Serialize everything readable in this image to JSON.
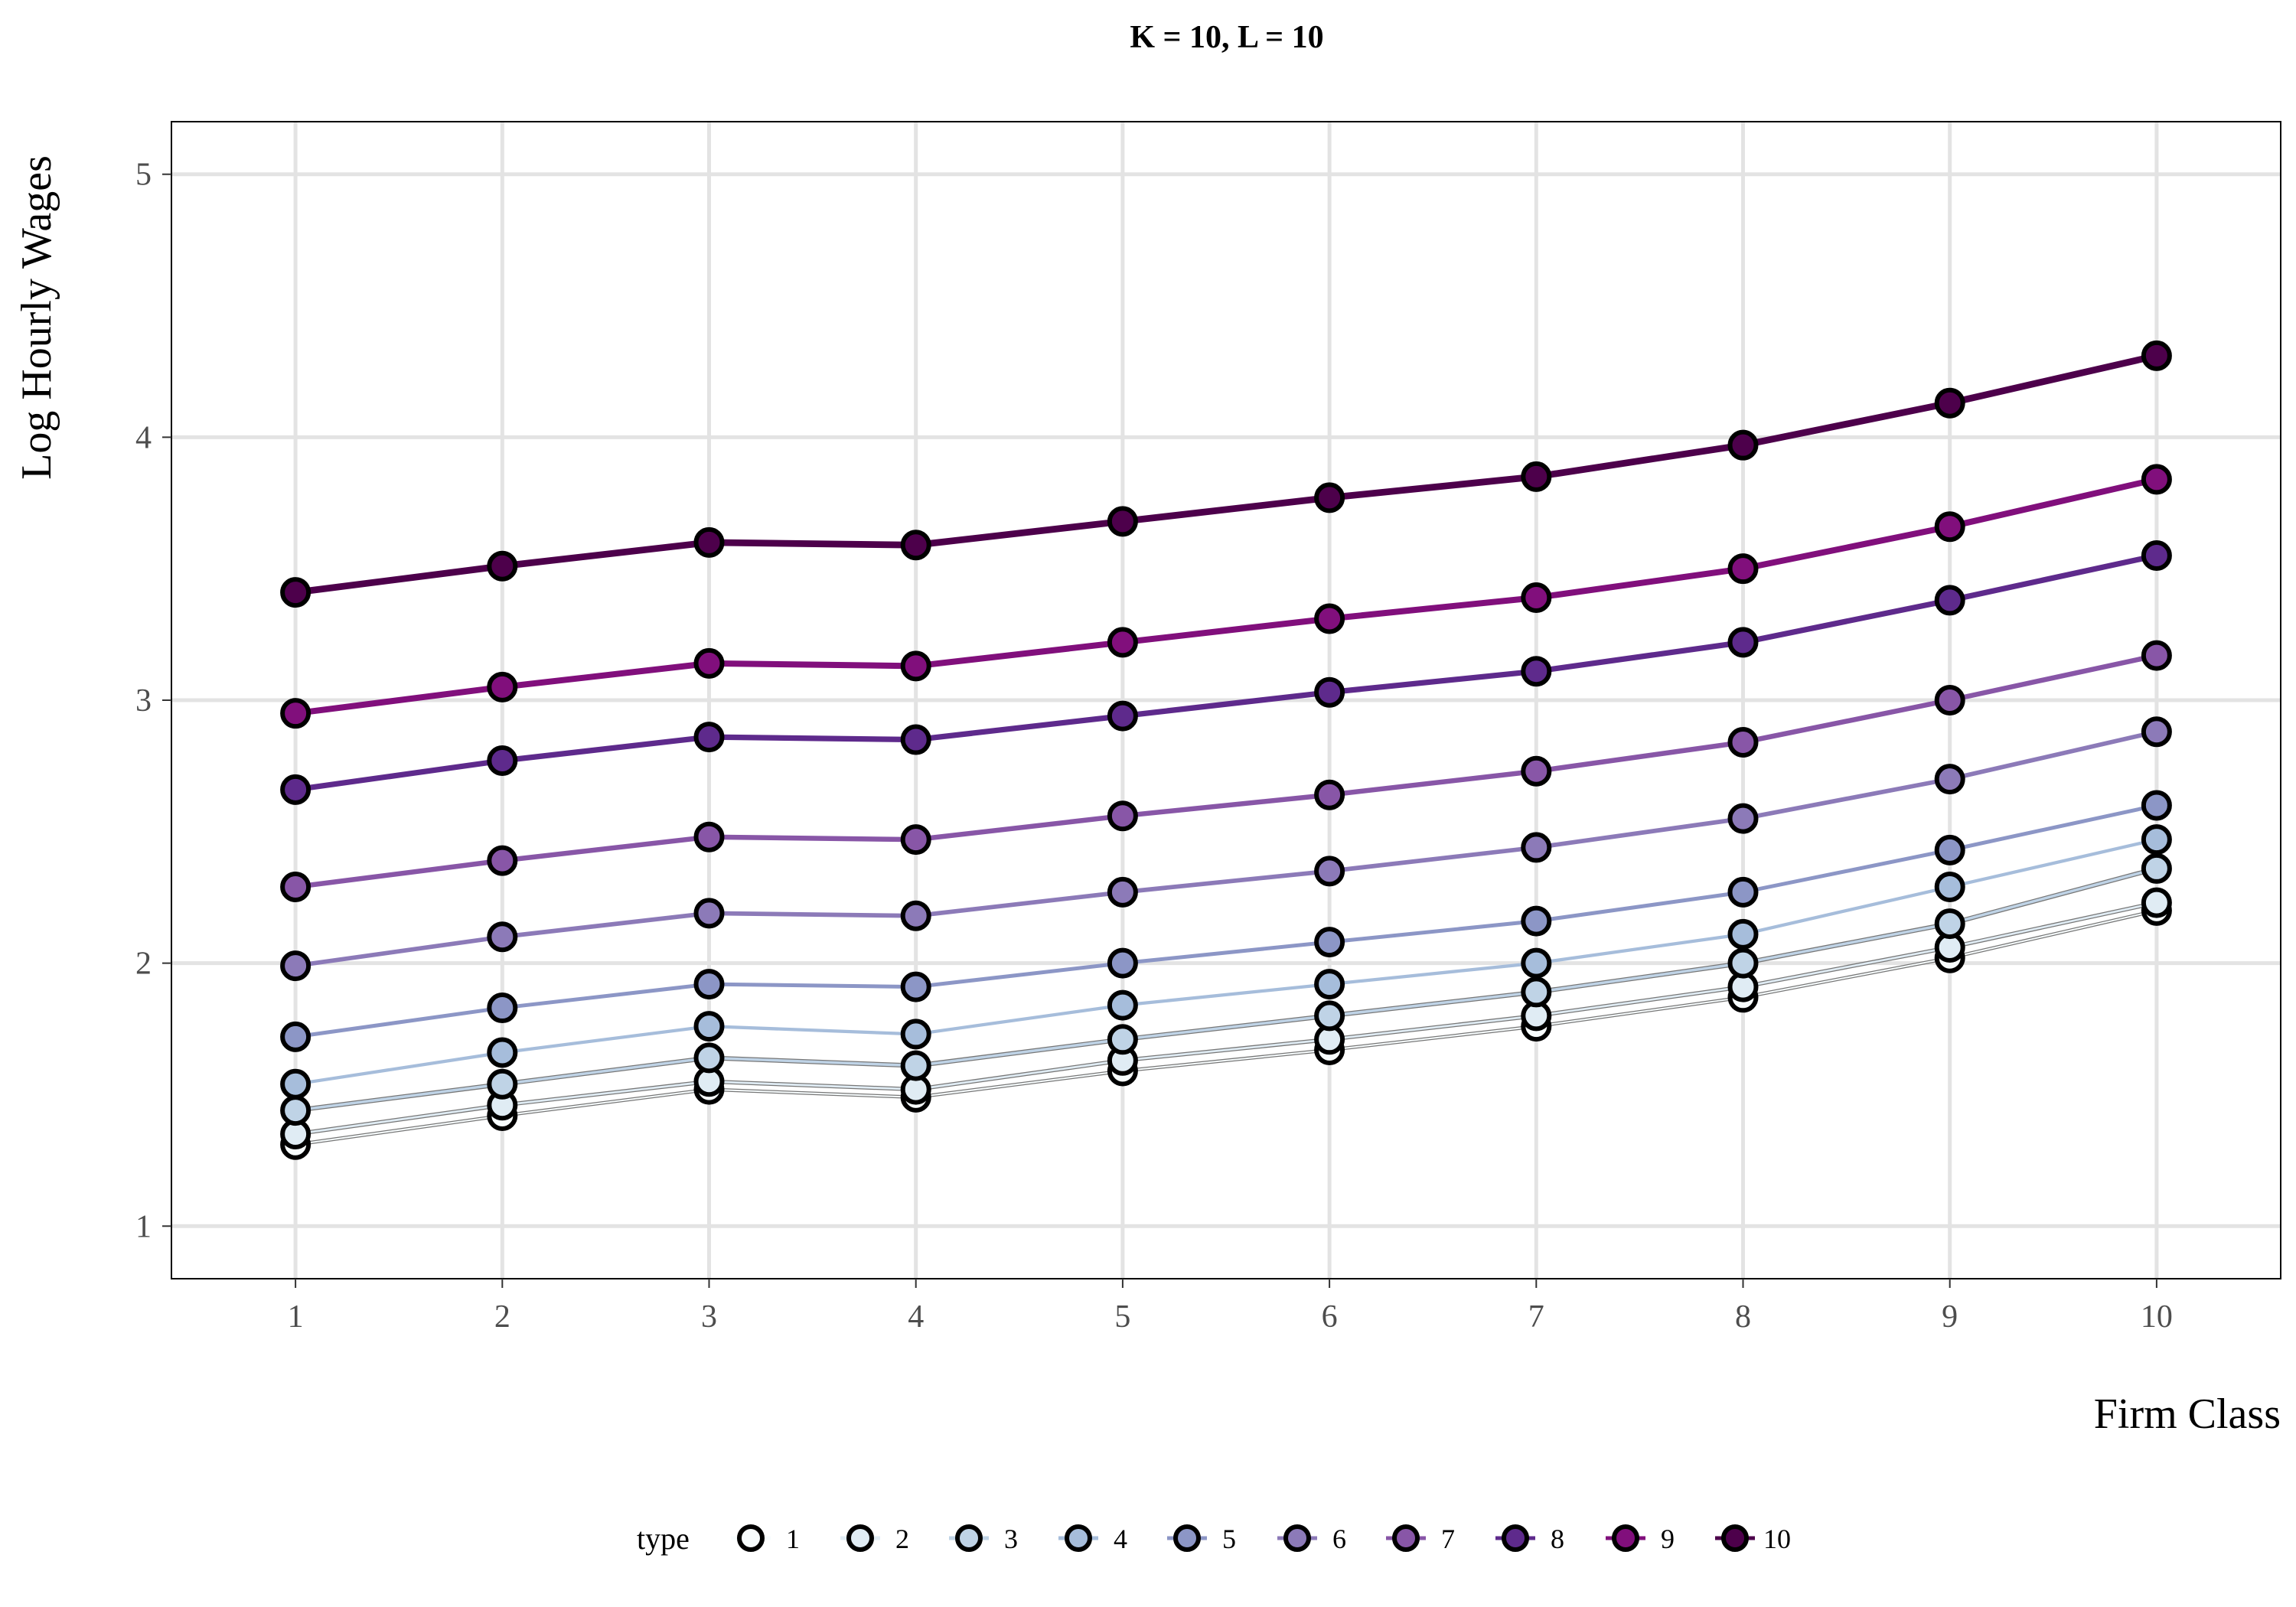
{
  "chart_data": {
    "type": "line",
    "title": "K = 10, L = 10",
    "xlabel": "Firm Class",
    "ylabel": "Log Hourly Wages",
    "x": [
      1,
      2,
      3,
      4,
      5,
      6,
      7,
      8,
      9,
      10
    ],
    "xlim": [
      0.4,
      10.6
    ],
    "ylim": [
      0.8,
      5.2
    ],
    "xticks": [
      "1",
      "2",
      "3",
      "4",
      "5",
      "6",
      "7",
      "8",
      "9",
      "10"
    ],
    "yticks": [
      "1",
      "2",
      "3",
      "4",
      "5"
    ],
    "grid": true,
    "legend": {
      "title": "type",
      "position": "bottom"
    },
    "series": [
      {
        "name": "1",
        "color": "#f7fcfd",
        "values": [
          1.31,
          1.42,
          1.52,
          1.49,
          1.59,
          1.67,
          1.76,
          1.87,
          2.02,
          2.2
        ]
      },
      {
        "name": "2",
        "color": "#e0ecf4",
        "values": [
          1.35,
          1.46,
          1.55,
          1.52,
          1.63,
          1.71,
          1.8,
          1.91,
          2.06,
          2.23
        ]
      },
      {
        "name": "3",
        "color": "#bfd3e6",
        "values": [
          1.44,
          1.54,
          1.64,
          1.61,
          1.71,
          1.8,
          1.89,
          2.0,
          2.15,
          2.36
        ]
      },
      {
        "name": "4",
        "color": "#a6bddb",
        "values": [
          1.54,
          1.66,
          1.76,
          1.73,
          1.84,
          1.92,
          2.0,
          2.11,
          2.29,
          2.47
        ]
      },
      {
        "name": "5",
        "color": "#8c96c6",
        "values": [
          1.72,
          1.83,
          1.92,
          1.91,
          2.0,
          2.08,
          2.16,
          2.27,
          2.43,
          2.6
        ]
      },
      {
        "name": "6",
        "color": "#8c7ab8",
        "values": [
          1.99,
          2.1,
          2.19,
          2.18,
          2.27,
          2.35,
          2.44,
          2.55,
          2.7,
          2.88
        ]
      },
      {
        "name": "7",
        "color": "#8856a7",
        "values": [
          2.29,
          2.39,
          2.48,
          2.47,
          2.56,
          2.64,
          2.73,
          2.84,
          3.0,
          3.17
        ]
      },
      {
        "name": "8",
        "color": "#5e2a8c",
        "values": [
          2.66,
          2.77,
          2.86,
          2.85,
          2.94,
          3.03,
          3.11,
          3.22,
          3.38,
          3.55
        ]
      },
      {
        "name": "9",
        "color": "#810f7c",
        "values": [
          2.95,
          3.05,
          3.14,
          3.13,
          3.22,
          3.31,
          3.39,
          3.5,
          3.66,
          3.84
        ]
      },
      {
        "name": "10",
        "color": "#4d004b",
        "values": [
          3.41,
          3.51,
          3.6,
          3.59,
          3.68,
          3.77,
          3.85,
          3.97,
          4.13,
          4.31
        ]
      }
    ]
  }
}
